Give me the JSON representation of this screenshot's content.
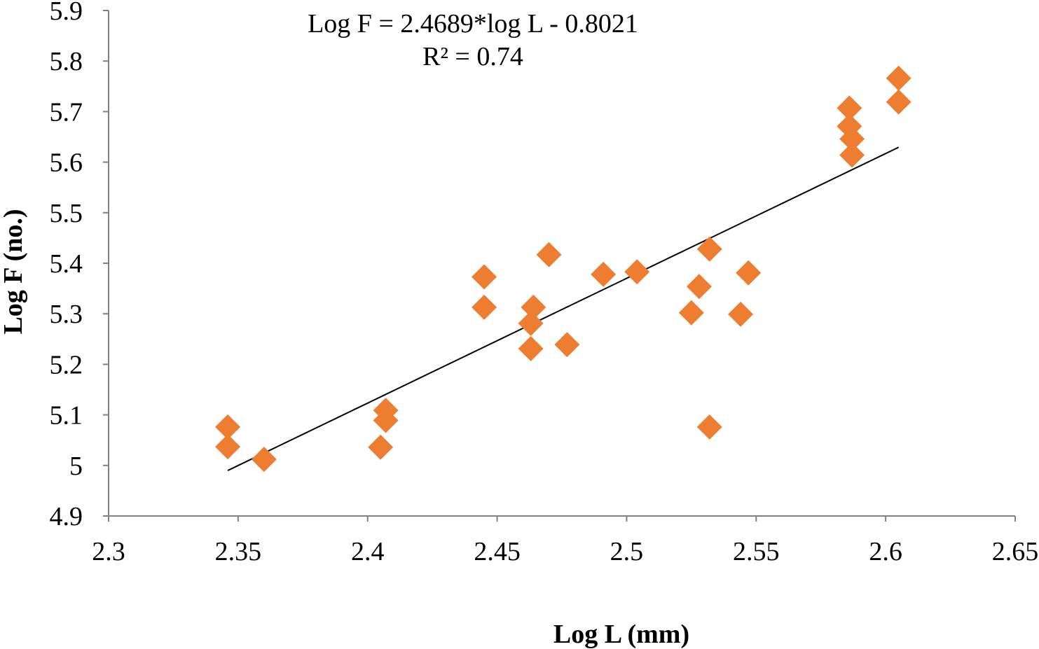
{
  "chart_data": {
    "type": "scatter",
    "title": "",
    "xlabel": "Log L (mm)",
    "ylabel": "Log F (no.)",
    "xlim": [
      2.3,
      2.65
    ],
    "ylim": [
      4.9,
      5.9
    ],
    "x_ticks": [
      "2.3",
      "2.35",
      "2.4",
      "2.45",
      "2.5",
      "2.55",
      "2.6",
      "2.65"
    ],
    "y_ticks": [
      "4.9",
      "5",
      "5.1",
      "5.2",
      "5.3",
      "5.4",
      "5.5",
      "5.6",
      "5.7",
      "5.8",
      "5.9"
    ],
    "grid": false,
    "legend": "none",
    "marker": "diamond",
    "marker_color": "#ED7D31",
    "trendline_color": "#000000",
    "series": [
      {
        "name": "Log F",
        "points": [
          [
            2.346,
            5.076
          ],
          [
            2.346,
            5.037
          ],
          [
            2.36,
            5.012
          ],
          [
            2.405,
            5.036
          ],
          [
            2.407,
            5.089
          ],
          [
            2.407,
            5.109
          ],
          [
            2.445,
            5.373
          ],
          [
            2.445,
            5.313
          ],
          [
            2.463,
            5.231
          ],
          [
            2.463,
            5.281
          ],
          [
            2.464,
            5.313
          ],
          [
            2.47,
            5.417
          ],
          [
            2.477,
            5.239
          ],
          [
            2.491,
            5.378
          ],
          [
            2.504,
            5.383
          ],
          [
            2.525,
            5.302
          ],
          [
            2.528,
            5.354
          ],
          [
            2.532,
            5.428
          ],
          [
            2.532,
            5.076
          ],
          [
            2.544,
            5.299
          ],
          [
            2.547,
            5.381
          ],
          [
            2.586,
            5.707
          ],
          [
            2.586,
            5.671
          ],
          [
            2.587,
            5.646
          ],
          [
            2.587,
            5.614
          ],
          [
            2.605,
            5.766
          ],
          [
            2.605,
            5.719
          ]
        ]
      }
    ],
    "trendline": {
      "slope": 2.4689,
      "intercept": -0.8021,
      "x_range": [
        2.346,
        2.605
      ]
    },
    "annotations": {
      "equation": "Log F = 2.4689*log L - 0.8021",
      "r_squared": "R² = 0.74"
    }
  }
}
